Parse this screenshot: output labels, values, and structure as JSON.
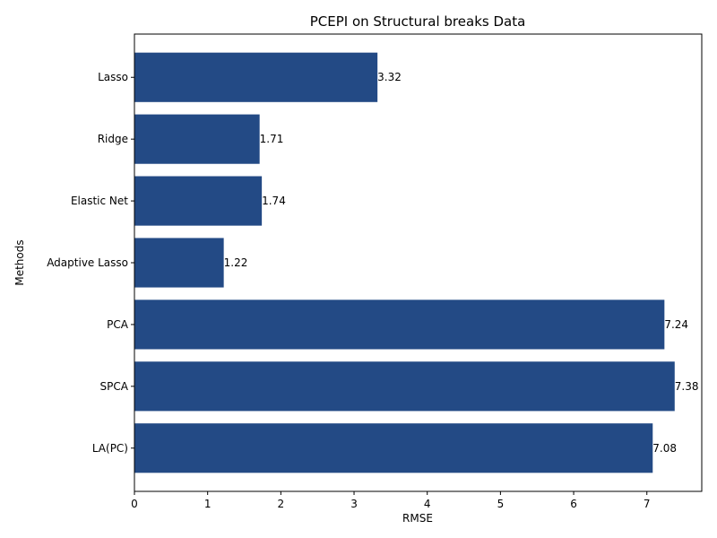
{
  "chart_data": {
    "type": "bar",
    "orientation": "horizontal",
    "title": "PCEPI on Structural breaks Data",
    "xlabel": "RMSE",
    "ylabel": "Methods",
    "categories": [
      "Lasso",
      "Ridge",
      "Elastic Net",
      "Adaptive Lasso",
      "PCA",
      "SPCA",
      "LA(PC)"
    ],
    "values": [
      3.32,
      1.71,
      1.74,
      1.22,
      7.24,
      7.38,
      7.08
    ],
    "data_labels": [
      "3.32",
      "1.71",
      "1.74",
      "1.22",
      "7.24",
      "7.38",
      "7.08"
    ],
    "xlim": [
      0,
      7.75
    ],
    "xticks": [
      0,
      1,
      2,
      3,
      4,
      5,
      6,
      7
    ],
    "xtick_labels": [
      "0",
      "1",
      "2",
      "3",
      "4",
      "5",
      "6",
      "7"
    ],
    "grid": false,
    "legend": "none",
    "bar_color": "#234a85"
  }
}
